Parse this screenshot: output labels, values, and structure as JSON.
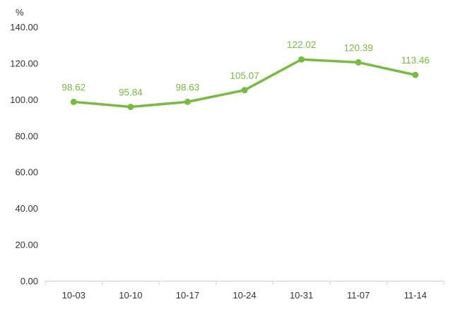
{
  "chart_data": {
    "type": "line",
    "ylabel": "%",
    "categories": [
      "10-03",
      "10-10",
      "10-17",
      "10-24",
      "10-31",
      "11-07",
      "11-14"
    ],
    "values": [
      98.62,
      95.84,
      98.63,
      105.07,
      122.02,
      120.39,
      113.46
    ],
    "value_labels": [
      "98.62",
      "95.84",
      "98.63",
      "105.07",
      "122.02",
      "120.39",
      "113.46"
    ],
    "yticks": [
      "0.00",
      "20.00",
      "40.00",
      "60.00",
      "80.00",
      "100.00",
      "120.00",
      "140.00"
    ],
    "ylim": [
      0,
      140
    ],
    "grid": false,
    "legend": "none",
    "color": "#77bb41"
  }
}
